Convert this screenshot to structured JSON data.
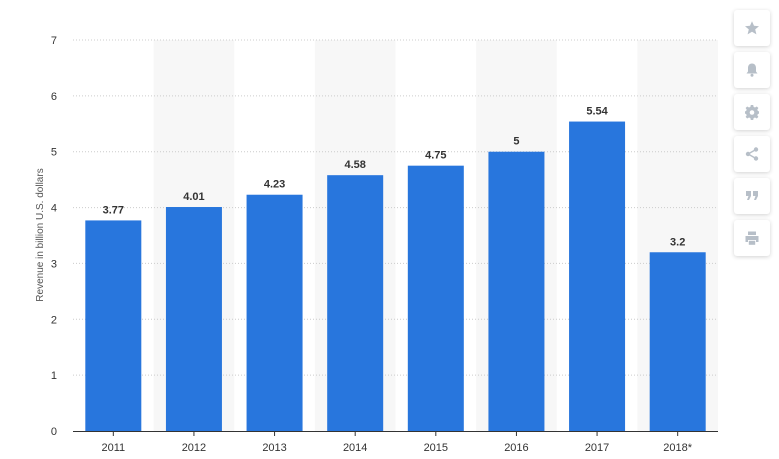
{
  "chart_data": {
    "type": "bar",
    "categories": [
      "2011",
      "2012",
      "2013",
      "2014",
      "2015",
      "2016",
      "2017",
      "2018*"
    ],
    "values": [
      3.77,
      4.01,
      4.23,
      4.58,
      4.75,
      5,
      5.54,
      3.2
    ],
    "value_labels": [
      "3.77",
      "4.01",
      "4.23",
      "4.58",
      "4.75",
      "5",
      "5.54",
      "3.2"
    ],
    "ylabel": "Revenue in billion U.S. dollars",
    "xlabel": "",
    "ylim": [
      0,
      7
    ],
    "yticks": [
      "0",
      "1",
      "2",
      "3",
      "4",
      "5",
      "6",
      "7"
    ],
    "grid": true,
    "bar_color": "#2876dd",
    "band_color": "#f7f7f7"
  },
  "toolbar": {
    "items": [
      {
        "icon": "star-icon"
      },
      {
        "icon": "bell-icon"
      },
      {
        "icon": "gear-icon"
      },
      {
        "icon": "share-icon"
      },
      {
        "icon": "quote-icon"
      },
      {
        "icon": "print-icon"
      }
    ],
    "icon_color": "#b7bfc8"
  }
}
